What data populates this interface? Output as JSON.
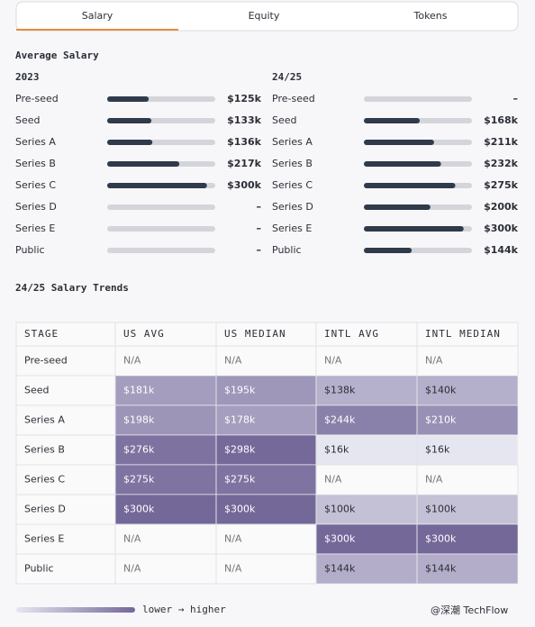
{
  "tabs": [
    "Salary",
    "Equity",
    "Tokens"
  ],
  "average_salary": {
    "title": "Average Salary",
    "xlim": [
      0,
      325
    ],
    "track_color": "#d3d5da",
    "fill_color": "#2f3a4b",
    "groups": [
      {
        "period": "2023",
        "rows": [
          {
            "stage": "Pre-seed",
            "value": 125,
            "label": "$125k"
          },
          {
            "stage": "Seed",
            "value": 133,
            "label": "$133k"
          },
          {
            "stage": "Series A",
            "value": 136,
            "label": "$136k"
          },
          {
            "stage": "Series B",
            "value": 217,
            "label": "$217k"
          },
          {
            "stage": "Series C",
            "value": 300,
            "label": "$300k"
          },
          {
            "stage": "Series D",
            "value": null,
            "label": "–"
          },
          {
            "stage": "Series E",
            "value": null,
            "label": "–"
          },
          {
            "stage": "Public",
            "value": null,
            "label": "–"
          }
        ]
      },
      {
        "period": "24/25",
        "rows": [
          {
            "stage": "Pre-seed",
            "value": null,
            "label": "–"
          },
          {
            "stage": "Seed",
            "value": 168,
            "label": "$168k"
          },
          {
            "stage": "Series A",
            "value": 211,
            "label": "$211k"
          },
          {
            "stage": "Series B",
            "value": 232,
            "label": "$232k"
          },
          {
            "stage": "Series C",
            "value": 275,
            "label": "$275k"
          },
          {
            "stage": "Series D",
            "value": 200,
            "label": "$200k"
          },
          {
            "stage": "Series E",
            "value": 300,
            "label": "$300k"
          },
          {
            "stage": "Public",
            "value": 144,
            "label": "$144k"
          }
        ]
      }
    ]
  },
  "trends": {
    "title": "24/25 Salary Trends",
    "colors": [
      "#e6e6f0",
      "#746899"
    ],
    "columns": [
      "STAGE",
      "US AVG",
      "US MEDIAN",
      "INTL AVG",
      "INTL MEDIAN"
    ],
    "rows": [
      {
        "stage": "Pre-seed",
        "cells": [
          {
            "value": null,
            "label": "N/A"
          },
          {
            "value": null,
            "label": "N/A"
          },
          {
            "value": null,
            "label": "N/A"
          },
          {
            "value": null,
            "label": "N/A"
          }
        ]
      },
      {
        "stage": "Seed",
        "cells": [
          {
            "value": 181,
            "label": "$181k"
          },
          {
            "value": 195,
            "label": "$195k"
          },
          {
            "value": 138,
            "label": "$138k"
          },
          {
            "value": 140,
            "label": "$140k"
          }
        ]
      },
      {
        "stage": "Series A",
        "cells": [
          {
            "value": 198,
            "label": "$198k"
          },
          {
            "value": 178,
            "label": "$178k"
          },
          {
            "value": 244,
            "label": "$244k"
          },
          {
            "value": 210,
            "label": "$210k"
          }
        ]
      },
      {
        "stage": "Series B",
        "cells": [
          {
            "value": 276,
            "label": "$276k"
          },
          {
            "value": 298,
            "label": "$298k"
          },
          {
            "value": 16,
            "label": "$16k"
          },
          {
            "value": 16,
            "label": "$16k"
          }
        ]
      },
      {
        "stage": "Series C",
        "cells": [
          {
            "value": 275,
            "label": "$275k"
          },
          {
            "value": 275,
            "label": "$275k"
          },
          {
            "value": null,
            "label": "N/A"
          },
          {
            "value": null,
            "label": "N/A"
          }
        ]
      },
      {
        "stage": "Series D",
        "cells": [
          {
            "value": 300,
            "label": "$300k"
          },
          {
            "value": 300,
            "label": "$300k"
          },
          {
            "value": 100,
            "label": "$100k"
          },
          {
            "value": 100,
            "label": "$100k"
          }
        ]
      },
      {
        "stage": "Series E",
        "cells": [
          {
            "value": null,
            "label": "N/A"
          },
          {
            "value": null,
            "label": "N/A"
          },
          {
            "value": 300,
            "label": "$300k"
          },
          {
            "value": 300,
            "label": "$300k"
          }
        ]
      },
      {
        "stage": "Public",
        "cells": [
          {
            "value": null,
            "label": "N/A"
          },
          {
            "value": null,
            "label": "N/A"
          },
          {
            "value": 144,
            "label": "$144k"
          },
          {
            "value": 144,
            "label": "$144k"
          }
        ]
      }
    ]
  },
  "legend": "lower → higher",
  "watermark": "@深潮 TechFlow"
}
